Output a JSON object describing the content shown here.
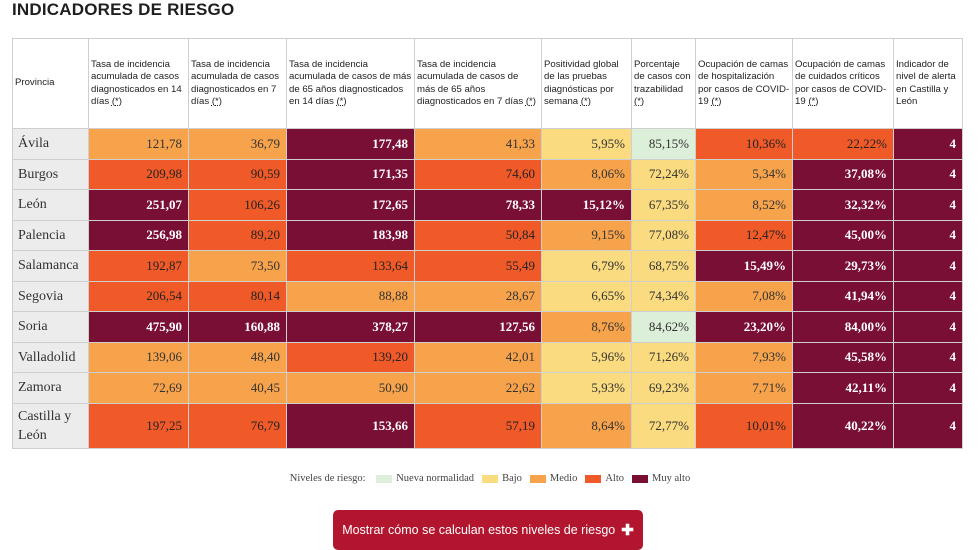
{
  "title": "INDICADORES DE RIESGO",
  "headers": [
    {
      "text": "Provincia",
      "mark": ""
    },
    {
      "text": "Tasa de incidencia acumulada de casos diagnosticados en 14 días ",
      "mark": "(*)"
    },
    {
      "text": "Tasa de incidencia acumulada de casos diagnosticados en 7 días ",
      "mark": "(*)"
    },
    {
      "text": "Tasa de incidencia acumulada de casos de más de 65 años diagnosticados en 14 días ",
      "mark": "(*)"
    },
    {
      "text": "Tasa de incidencia acumulada de casos de más de 65 años diagnosticados en 7 días ",
      "mark": "(*)"
    },
    {
      "text": "Positividad global de las pruebas diagnósticas por semana ",
      "mark": "(*)"
    },
    {
      "text": "Porcentaje de casos con trazabilidad ",
      "mark": "(*)"
    },
    {
      "text": "Ocupación de camas de hospitalización por casos de COVID-19 ",
      "mark": "(*)"
    },
    {
      "text": "Ocupación de camas de cuidados críticos por casos de COVID-19 ",
      "mark": "(*)"
    },
    {
      "text": "Indicador de nivel de alerta en Castilla y León",
      "mark": ""
    }
  ],
  "rows": [
    {
      "province": "Ávila",
      "cells": [
        {
          "v": "121,78",
          "l": "medio"
        },
        {
          "v": "36,79",
          "l": "medio"
        },
        {
          "v": "177,48",
          "l": "muyalto"
        },
        {
          "v": "41,33",
          "l": "medio"
        },
        {
          "v": "5,95%",
          "l": "bajo"
        },
        {
          "v": "85,15%",
          "l": "nueva"
        },
        {
          "v": "10,36%",
          "l": "alto"
        },
        {
          "v": "22,22%",
          "l": "alto"
        },
        {
          "v": "4",
          "l": "muyalto"
        }
      ]
    },
    {
      "province": "Burgos",
      "cells": [
        {
          "v": "209,98",
          "l": "alto"
        },
        {
          "v": "90,59",
          "l": "alto"
        },
        {
          "v": "171,35",
          "l": "muyalto"
        },
        {
          "v": "74,60",
          "l": "alto"
        },
        {
          "v": "8,06%",
          "l": "medio"
        },
        {
          "v": "72,24%",
          "l": "bajo"
        },
        {
          "v": "5,34%",
          "l": "medio"
        },
        {
          "v": "37,08%",
          "l": "muyalto"
        },
        {
          "v": "4",
          "l": "muyalto"
        }
      ]
    },
    {
      "province": "León",
      "cells": [
        {
          "v": "251,07",
          "l": "muyalto"
        },
        {
          "v": "106,26",
          "l": "alto"
        },
        {
          "v": "172,65",
          "l": "muyalto"
        },
        {
          "v": "78,33",
          "l": "muyalto"
        },
        {
          "v": "15,12%",
          "l": "muyalto"
        },
        {
          "v": "67,35%",
          "l": "bajo"
        },
        {
          "v": "8,52%",
          "l": "medio"
        },
        {
          "v": "32,32%",
          "l": "muyalto"
        },
        {
          "v": "4",
          "l": "muyalto"
        }
      ]
    },
    {
      "province": "Palencia",
      "cells": [
        {
          "v": "256,98",
          "l": "muyalto"
        },
        {
          "v": "89,20",
          "l": "alto"
        },
        {
          "v": "183,98",
          "l": "muyalto"
        },
        {
          "v": "50,84",
          "l": "alto"
        },
        {
          "v": "9,15%",
          "l": "medio"
        },
        {
          "v": "77,08%",
          "l": "bajo"
        },
        {
          "v": "12,47%",
          "l": "alto"
        },
        {
          "v": "45,00%",
          "l": "muyalto"
        },
        {
          "v": "4",
          "l": "muyalto"
        }
      ]
    },
    {
      "province": "Salamanca",
      "cells": [
        {
          "v": "192,87",
          "l": "alto"
        },
        {
          "v": "73,50",
          "l": "medio"
        },
        {
          "v": "133,64",
          "l": "alto"
        },
        {
          "v": "55,49",
          "l": "alto"
        },
        {
          "v": "6,79%",
          "l": "bajo"
        },
        {
          "v": "68,75%",
          "l": "bajo"
        },
        {
          "v": "15,49%",
          "l": "muyalto"
        },
        {
          "v": "29,73%",
          "l": "muyalto"
        },
        {
          "v": "4",
          "l": "muyalto"
        }
      ]
    },
    {
      "province": "Segovia",
      "cells": [
        {
          "v": "206,54",
          "l": "alto"
        },
        {
          "v": "80,14",
          "l": "alto"
        },
        {
          "v": "88,88",
          "l": "medio"
        },
        {
          "v": "28,67",
          "l": "medio"
        },
        {
          "v": "6,65%",
          "l": "bajo"
        },
        {
          "v": "74,34%",
          "l": "bajo"
        },
        {
          "v": "7,08%",
          "l": "medio"
        },
        {
          "v": "41,94%",
          "l": "muyalto"
        },
        {
          "v": "4",
          "l": "muyalto"
        }
      ]
    },
    {
      "province": "Soria",
      "cells": [
        {
          "v": "475,90",
          "l": "muyalto"
        },
        {
          "v": "160,88",
          "l": "muyalto"
        },
        {
          "v": "378,27",
          "l": "muyalto"
        },
        {
          "v": "127,56",
          "l": "muyalto"
        },
        {
          "v": "8,76%",
          "l": "medio"
        },
        {
          "v": "84,62%",
          "l": "nueva"
        },
        {
          "v": "23,20%",
          "l": "muyalto"
        },
        {
          "v": "84,00%",
          "l": "muyalto"
        },
        {
          "v": "4",
          "l": "muyalto"
        }
      ]
    },
    {
      "province": "Valladolid",
      "cells": [
        {
          "v": "139,06",
          "l": "medio"
        },
        {
          "v": "48,40",
          "l": "medio"
        },
        {
          "v": "139,20",
          "l": "alto"
        },
        {
          "v": "42,01",
          "l": "medio"
        },
        {
          "v": "5,96%",
          "l": "bajo"
        },
        {
          "v": "71,26%",
          "l": "bajo"
        },
        {
          "v": "7,93%",
          "l": "medio"
        },
        {
          "v": "45,58%",
          "l": "muyalto"
        },
        {
          "v": "4",
          "l": "muyalto"
        }
      ]
    },
    {
      "province": "Zamora",
      "cells": [
        {
          "v": "72,69",
          "l": "medio"
        },
        {
          "v": "40,45",
          "l": "medio"
        },
        {
          "v": "50,90",
          "l": "medio"
        },
        {
          "v": "22,62",
          "l": "medio"
        },
        {
          "v": "5,93%",
          "l": "bajo"
        },
        {
          "v": "69,23%",
          "l": "bajo"
        },
        {
          "v": "7,71%",
          "l": "medio"
        },
        {
          "v": "42,11%",
          "l": "muyalto"
        },
        {
          "v": "4",
          "l": "muyalto"
        }
      ]
    },
    {
      "province": "Castilla y León",
      "total": true,
      "cells": [
        {
          "v": "197,25",
          "l": "alto"
        },
        {
          "v": "76,79",
          "l": "alto"
        },
        {
          "v": "153,66",
          "l": "muyalto"
        },
        {
          "v": "57,19",
          "l": "alto"
        },
        {
          "v": "8,64%",
          "l": "medio"
        },
        {
          "v": "72,77%",
          "l": "bajo"
        },
        {
          "v": "10,01%",
          "l": "alto"
        },
        {
          "v": "40,22%",
          "l": "muyalto"
        },
        {
          "v": "4",
          "l": "muyalto"
        }
      ]
    }
  ],
  "legend": {
    "label": "Niveles de riesgo:",
    "items": [
      {
        "key": "nueva",
        "label": "Nueva normalidad",
        "color": "#dcefd8"
      },
      {
        "key": "bajo",
        "label": "Bajo",
        "color": "#fadb80"
      },
      {
        "key": "medio",
        "label": "Medio",
        "color": "#f7a34c"
      },
      {
        "key": "alto",
        "label": "Alto",
        "color": "#f05a28"
      },
      {
        "key": "muyalto",
        "label": "Muy alto",
        "color": "#7a0f35"
      }
    ]
  },
  "cta": {
    "label": "Mostrar cómo se calculan estos niveles de riesgo",
    "icon": "plus-icon",
    "color": "#b2162f"
  }
}
